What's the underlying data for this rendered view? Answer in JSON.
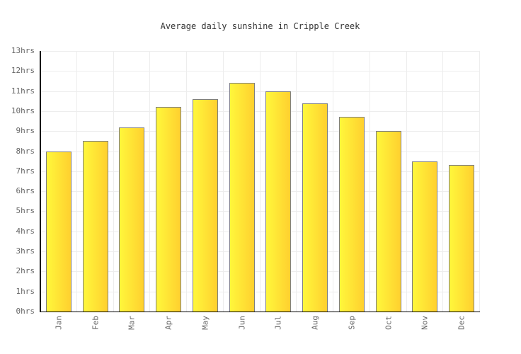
{
  "chart_data": {
    "type": "bar",
    "title": "Average daily sunshine in Cripple Creek",
    "categories": [
      "Jan",
      "Feb",
      "Mar",
      "Apr",
      "May",
      "Jun",
      "Jul",
      "Aug",
      "Sep",
      "Oct",
      "Nov",
      "Dec"
    ],
    "values": [
      8.0,
      8.5,
      9.2,
      10.2,
      10.6,
      11.4,
      11.0,
      10.4,
      9.7,
      9.0,
      7.5,
      7.3
    ],
    "unit": "hrs",
    "yticks": [
      "0hrs",
      "1hrs",
      "2hrs",
      "3hrs",
      "4hrs",
      "5hrs",
      "6hrs",
      "7hrs",
      "8hrs",
      "9hrs",
      "10hrs",
      "11hrs",
      "12hrs",
      "13hrs"
    ],
    "ylim": [
      0,
      13
    ],
    "ytick_step": 1,
    "grid": true,
    "legend": "none",
    "colors": {
      "bar_gradient_left": "#fff73b",
      "bar_gradient_right": "#ffd02f",
      "bar_border": "#7f7f7f",
      "gridline": "#ededed",
      "axis": "#000000",
      "tick_label": "#666666",
      "title": "#333333",
      "background": "#ffffff"
    }
  }
}
